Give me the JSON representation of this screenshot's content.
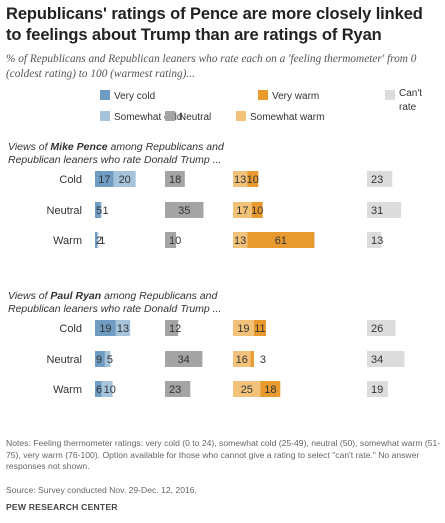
{
  "title": "Republicans' ratings of Pence are more closely linked to feelings about Trump than are ratings of Ryan",
  "subtitle": "% of Republicans and Republican leaners who rate each on a 'feeling thermometer' from 0 (coldest rating) to 100 (warmest rating)...",
  "notes": "Notes: Feeling thermometer ratings: very cold (0 to 24), somewhat cold (25-49), neutral (50), somewhat warm (51-75), very warm (76-100). Option available for those who cannot give a rating to select \"can't rate.\" No answer responses not shown.",
  "source": "Source: Survey conducted Nov. 29-Dec. 12, 2016.",
  "credit": "PEW RESEARCH CENTER",
  "colors": {
    "very_cold": "#6f9cc3",
    "somewhat_cold": "#a6c3dc",
    "neutral": "#a4a4a4",
    "somewhat_warm": "#f2c27b",
    "very_warm": "#e99a2f",
    "cant_rate": "#dcdcdc"
  },
  "chart_data": {
    "type": "bar",
    "stacked": true,
    "legend": {
      "position": "top",
      "items": [
        {
          "key": "very_cold",
          "label": "Very cold"
        },
        {
          "key": "very_warm",
          "label": "Very warm"
        },
        {
          "key": "cant_rate",
          "label": "Can't rate"
        },
        {
          "key": "somewhat_cold",
          "label": "Somewhat cold"
        },
        {
          "key": "neutral",
          "label": "Neutral"
        },
        {
          "key": "somewhat_warm",
          "label": "Somewhat warm"
        }
      ]
    },
    "panels": [
      {
        "heading_pre": "Views of ",
        "heading_name": "Mike Pence",
        "heading_post": " among Republicans and",
        "heading_line2": "Republican leaners who rate Donald Trump ...",
        "categories": [
          "Cold",
          "Neutral",
          "Warm"
        ],
        "series": [
          {
            "key": "very_cold",
            "values": [
              17,
              5,
              2
            ]
          },
          {
            "key": "somewhat_cold",
            "values": [
              20,
              1,
              1
            ]
          },
          {
            "key": "neutral",
            "values": [
              18,
              35,
              10
            ]
          },
          {
            "key": "somewhat_warm",
            "values": [
              13,
              17,
              13
            ]
          },
          {
            "key": "very_warm",
            "values": [
              10,
              10,
              61
            ]
          },
          {
            "key": "cant_rate",
            "values": [
              23,
              31,
              13
            ]
          }
        ]
      },
      {
        "heading_pre": "Views of ",
        "heading_name": "Paul Ryan",
        "heading_post": " among Republicans and",
        "heading_line2": "Republican leaners who rate Donald Trump ...",
        "categories": [
          "Cold",
          "Neutral",
          "Warm"
        ],
        "series": [
          {
            "key": "very_cold",
            "values": [
              19,
              9,
              6
            ]
          },
          {
            "key": "somewhat_cold",
            "values": [
              13,
              5,
              10
            ]
          },
          {
            "key": "neutral",
            "values": [
              12,
              34,
              23
            ]
          },
          {
            "key": "somewhat_warm",
            "values": [
              19,
              16,
              25
            ]
          },
          {
            "key": "very_warm",
            "values": [
              11,
              3,
              18
            ]
          },
          {
            "key": "cant_rate",
            "values": [
              26,
              34,
              19
            ]
          }
        ]
      }
    ]
  }
}
